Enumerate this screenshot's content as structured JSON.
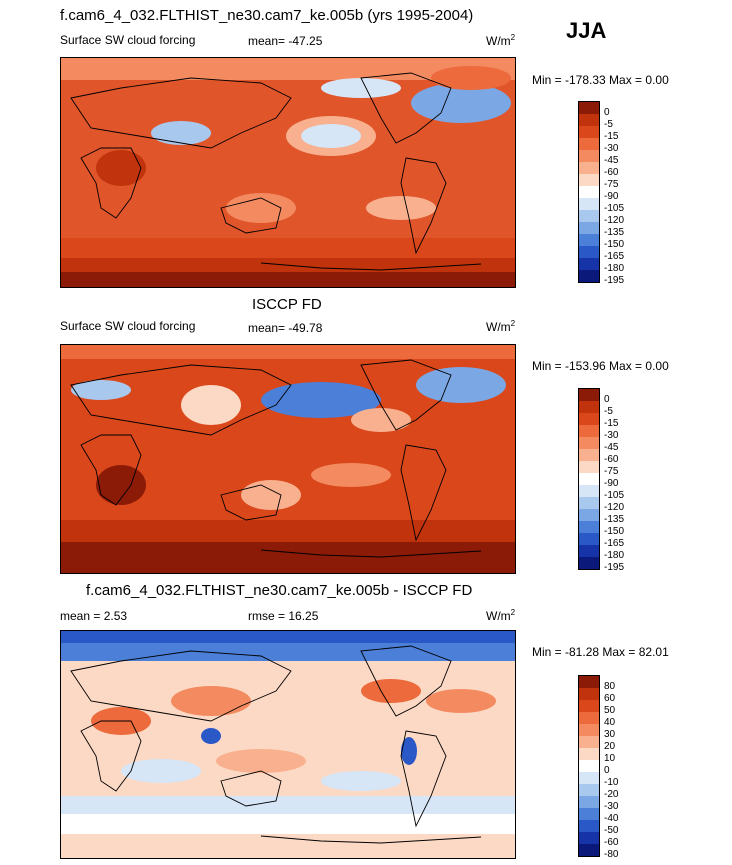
{
  "season": "JJA",
  "panels": [
    {
      "title": "f.cam6_4_032.FLTHIST_ne30.cam7_ke.005b (yrs 1995-2004)",
      "left_label": "Surface SW cloud forcing",
      "center_label": "mean= -47.25",
      "units": "W/m",
      "units_sup": "2",
      "minmax": "Min = -178.33 Max =   0.00",
      "colorbar_ticks": [
        "0",
        "-5",
        "-15",
        "-30",
        "-45",
        "-60",
        "-75",
        "-90",
        "-105",
        "-120",
        "-135",
        "-150",
        "-165",
        "-180",
        "-195"
      ]
    },
    {
      "title": "ISCCP FD",
      "left_label": "Surface SW cloud forcing",
      "center_label": "mean= -49.78",
      "units": "W/m",
      "units_sup": "2",
      "minmax": "Min = -153.96 Max =   0.00",
      "colorbar_ticks": [
        "0",
        "-5",
        "-15",
        "-30",
        "-45",
        "-60",
        "-75",
        "-90",
        "-105",
        "-120",
        "-135",
        "-150",
        "-165",
        "-180",
        "-195"
      ]
    },
    {
      "title": "f.cam6_4_032.FLTHIST_ne30.cam7_ke.005b - ISCCP FD",
      "left_label": "mean =   2.53",
      "center_label": "rmse =  16.25",
      "units": "W/m",
      "units_sup": "2",
      "minmax": "Min = -81.28 Max =  82.01",
      "colorbar_ticks": [
        "80",
        "60",
        "50",
        "40",
        "30",
        "20",
        "10",
        "0",
        "-10",
        "-20",
        "-30",
        "-40",
        "-50",
        "-60",
        "-80"
      ]
    }
  ],
  "chart_data": [
    {
      "type": "heatmap",
      "title": "f.cam6_4_032.FLTHIST_ne30.cam7_ke.005b (yrs 1995-2004)",
      "variable": "Surface SW cloud forcing",
      "units": "W/m2",
      "mean": -47.25,
      "min": -178.33,
      "max": 0.0,
      "colorbar_levels": [
        0,
        -5,
        -15,
        -30,
        -45,
        -60,
        -75,
        -90,
        -105,
        -120,
        -135,
        -150,
        -165,
        -180,
        -195
      ]
    },
    {
      "type": "heatmap",
      "title": "ISCCP FD",
      "variable": "Surface SW cloud forcing",
      "units": "W/m2",
      "mean": -49.78,
      "min": -153.96,
      "max": 0.0,
      "colorbar_levels": [
        0,
        -5,
        -15,
        -30,
        -45,
        -60,
        -75,
        -90,
        -105,
        -120,
        -135,
        -150,
        -165,
        -180,
        -195
      ]
    },
    {
      "type": "heatmap",
      "title": "f.cam6_4_032.FLTHIST_ne30.cam7_ke.005b - ISCCP FD",
      "units": "W/m2",
      "mean": 2.53,
      "rmse": 16.25,
      "min": -81.28,
      "max": 82.01,
      "colorbar_levels": [
        80,
        60,
        50,
        40,
        30,
        20,
        10,
        0,
        -10,
        -20,
        -30,
        -40,
        -50,
        -60,
        -80
      ]
    }
  ],
  "colors": {
    "scale": [
      "#8b1a06",
      "#c1330c",
      "#d9471a",
      "#ec6a3c",
      "#f48a60",
      "#f9b08f",
      "#fcd9c4",
      "#ffffff",
      "#d6e6f7",
      "#a9c8ee",
      "#7ba7e4",
      "#4b7fd8",
      "#2b58c7",
      "#1633a8",
      "#0b1a7a"
    ]
  }
}
